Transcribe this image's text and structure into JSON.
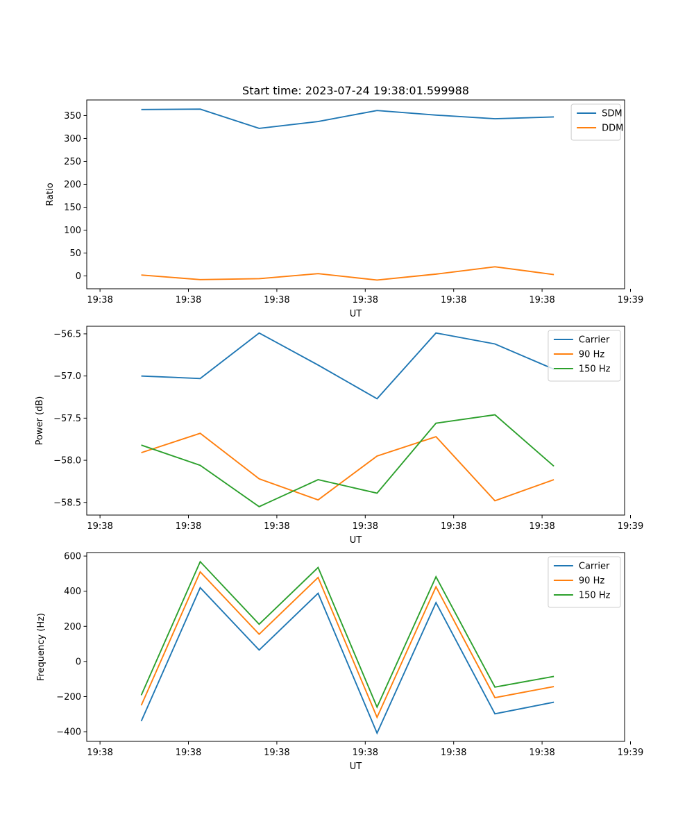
{
  "chart_data": [
    {
      "type": "line",
      "title": "Start time: 2023-07-24 19:38:01.599988",
      "xlabel": "UT",
      "ylabel": "Ratio",
      "ylim": [
        -28,
        384
      ],
      "yticks": [
        0,
        50,
        100,
        150,
        200,
        250,
        300,
        350
      ],
      "yticklabels": [
        "0",
        "50",
        "100",
        "150",
        "200",
        "250",
        "300",
        "350"
      ],
      "xlim": [
        -0.225,
        8.9
      ],
      "xticks": [
        0,
        1.5,
        3,
        4.5,
        6,
        7.5,
        9
      ],
      "xticklabels": [
        "19:38",
        "19:38",
        "19:38",
        "19:38",
        "19:38",
        "19:38",
        "19:39"
      ],
      "x": [
        0.7,
        1.7,
        2.7,
        3.7,
        4.7,
        5.7,
        6.7,
        7.7
      ],
      "legend": "top-right",
      "series": [
        {
          "name": "SDM",
          "color": "#1f77b4",
          "values": [
            363,
            364,
            322,
            337,
            361,
            351,
            343,
            347
          ]
        },
        {
          "name": "DDM",
          "color": "#ff7f0e",
          "values": [
            2,
            -8,
            -6,
            5,
            -9,
            4,
            20,
            3
          ]
        }
      ]
    },
    {
      "type": "line",
      "title": "",
      "xlabel": "UT",
      "ylabel": "Power (dB)",
      "ylim": [
        -58.65,
        -56.41
      ],
      "yticks": [
        -58.5,
        -58.0,
        -57.5,
        -57.0,
        -56.5
      ],
      "yticklabels": [
        "−58.5",
        "−58.0",
        "−57.5",
        "−57.0",
        "−56.5"
      ],
      "xlim": [
        -0.225,
        8.9
      ],
      "xticks": [
        0,
        1.5,
        3,
        4.5,
        6,
        7.5,
        9
      ],
      "xticklabels": [
        "19:38",
        "19:38",
        "19:38",
        "19:38",
        "19:38",
        "19:38",
        "19:39"
      ],
      "x": [
        0.7,
        1.7,
        2.7,
        3.7,
        4.7,
        5.7,
        6.7,
        7.7
      ],
      "legend": "top-right",
      "series": [
        {
          "name": "Carrier",
          "color": "#1f77b4",
          "values": [
            -57.0,
            -57.03,
            -56.49,
            -56.87,
            -57.27,
            -56.49,
            -56.62,
            -56.92
          ]
        },
        {
          "name": "90 Hz",
          "color": "#ff7f0e",
          "values": [
            -57.91,
            -57.68,
            -58.22,
            -58.47,
            -57.95,
            -57.72,
            -58.48,
            -58.23
          ]
        },
        {
          "name": "150 Hz",
          "color": "#2ca02c",
          "values": [
            -57.82,
            -58.06,
            -58.55,
            -58.23,
            -58.39,
            -57.56,
            -57.46,
            -58.07
          ]
        }
      ]
    },
    {
      "type": "line",
      "title": "",
      "xlabel": "UT",
      "ylabel": "Frequency (Hz)",
      "ylim": [
        -455,
        620
      ],
      "yticks": [
        -400,
        -200,
        0,
        200,
        400,
        600
      ],
      "yticklabels": [
        "−400",
        "−200",
        "0",
        "200",
        "400",
        "600"
      ],
      "xlim": [
        -0.225,
        8.9
      ],
      "xticks": [
        0,
        1.5,
        3,
        4.5,
        6,
        7.5,
        9
      ],
      "xticklabels": [
        "19:38",
        "19:38",
        "19:38",
        "19:38",
        "19:38",
        "19:38",
        "19:39"
      ],
      "x": [
        0.7,
        1.7,
        2.7,
        3.7,
        4.7,
        5.7,
        6.7,
        7.7
      ],
      "legend": "top-right",
      "series": [
        {
          "name": "Carrier",
          "color": "#1f77b4",
          "values": [
            -340,
            420,
            65,
            388,
            -408,
            335,
            -298,
            -232
          ]
        },
        {
          "name": "90 Hz",
          "color": "#ff7f0e",
          "values": [
            -250,
            510,
            155,
            478,
            -318,
            425,
            -206,
            -143
          ]
        },
        {
          "name": "150 Hz",
          "color": "#2ca02c",
          "values": [
            -192,
            568,
            212,
            535,
            -260,
            482,
            -146,
            -85
          ]
        }
      ]
    }
  ]
}
